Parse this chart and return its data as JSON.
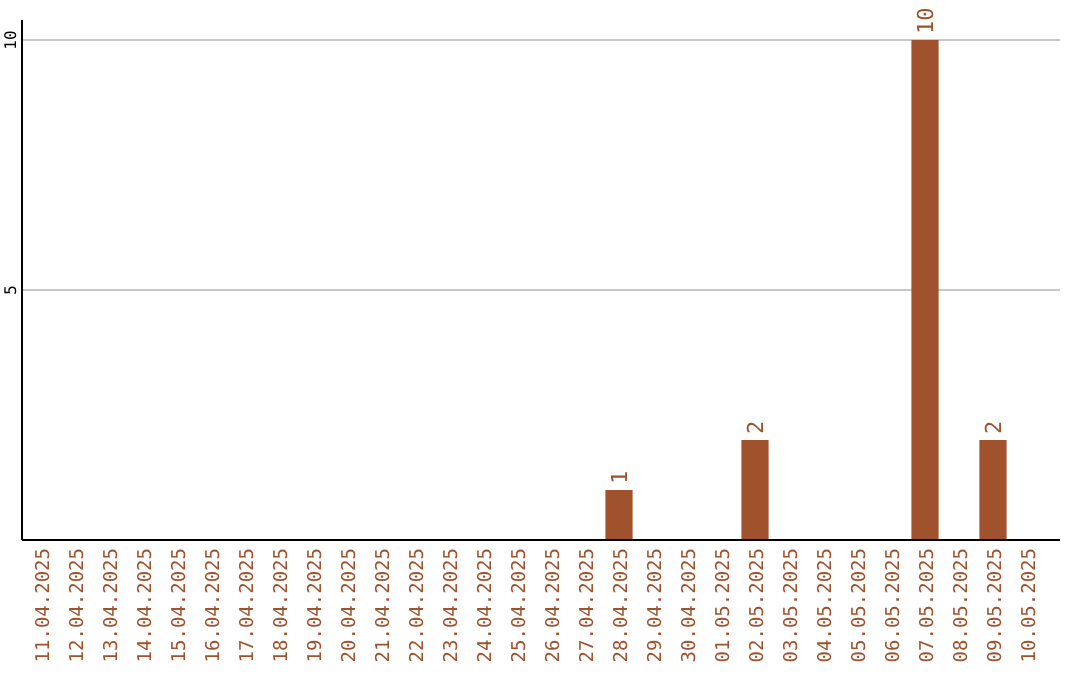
{
  "chart_data": {
    "type": "bar",
    "categories": [
      "11.04.2025",
      "12.04.2025",
      "13.04.2025",
      "14.04.2025",
      "15.04.2025",
      "16.04.2025",
      "17.04.2025",
      "18.04.2025",
      "19.04.2025",
      "20.04.2025",
      "21.04.2025",
      "22.04.2025",
      "23.04.2025",
      "24.04.2025",
      "25.04.2025",
      "26.04.2025",
      "27.04.2025",
      "28.04.2025",
      "29.04.2025",
      "30.04.2025",
      "01.05.2025",
      "02.05.2025",
      "03.05.2025",
      "04.05.2025",
      "05.05.2025",
      "06.05.2025",
      "07.05.2025",
      "08.05.2025",
      "09.05.2025",
      "10.05.2025"
    ],
    "values": [
      0,
      0,
      0,
      0,
      0,
      0,
      0,
      0,
      0,
      0,
      0,
      0,
      0,
      0,
      0,
      0,
      0,
      1,
      0,
      0,
      0,
      2,
      0,
      0,
      0,
      0,
      10,
      0,
      2,
      0
    ],
    "value_labels": [
      null,
      null,
      null,
      null,
      null,
      null,
      null,
      null,
      null,
      null,
      null,
      null,
      null,
      null,
      null,
      null,
      null,
      "1",
      null,
      null,
      null,
      "2",
      null,
      null,
      null,
      null,
      "10",
      null,
      "2",
      null
    ],
    "color": "#a0522d",
    "ylim": [
      0,
      10.4
    ],
    "yticks": [
      5,
      10
    ],
    "grid": "y"
  }
}
